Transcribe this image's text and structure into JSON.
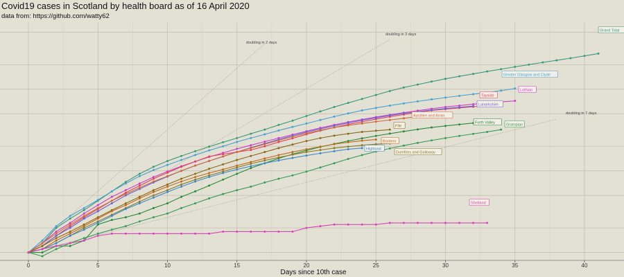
{
  "chart_data": {
    "type": "line",
    "title": "Covid19 cases in Scotland by health board as of 16 April 2020",
    "subtitle": "data from: https://github.com/watty62",
    "xlabel": "Days since 10th case",
    "ylabel": "",
    "xlim": [
      -1,
      43
    ],
    "x_ticks": [
      0,
      5,
      10,
      15,
      20,
      25,
      30,
      35,
      40
    ],
    "y_scale": "log",
    "ylim": [
      8,
      6500
    ],
    "y_tick_labels_visible": false,
    "grid": true,
    "doubling_lines": [
      {
        "label": "doubling in 2 days",
        "days": 2,
        "x_end": 17
      },
      {
        "label": "doubling in 3 days",
        "days": 3,
        "x_end": 26
      },
      {
        "label": "doubling in 7 days",
        "days": 7,
        "x_end": 38
      }
    ],
    "series": [
      {
        "name": "Grand Total",
        "color": "#3a9a78",
        "x_end": 41,
        "values": [
          10,
          13,
          20,
          26,
          33,
          43,
          56,
          73,
          92,
          112,
          132,
          152,
          174,
          198,
          224,
          252,
          285,
          320,
          365,
          412,
          470,
          535,
          605,
          680,
          760,
          850,
          950,
          1050,
          1140,
          1240,
          1340,
          1440,
          1540,
          1650,
          1760,
          1880,
          2000,
          2130,
          2260,
          2400,
          2560,
          2730
        ]
      },
      {
        "name": "Greater Glasgow and Clyde",
        "color": "#4aa0d0",
        "x_end": 35,
        "values": [
          10,
          14,
          21,
          28,
          35,
          44,
          56,
          70,
          86,
          102,
          118,
          136,
          156,
          178,
          200,
          226,
          252,
          280,
          312,
          345,
          380,
          420,
          462,
          505,
          550,
          590,
          630,
          670,
          710,
          750,
          790,
          830,
          870,
          910,
          960,
          1020
        ]
      },
      {
        "name": "Lothian",
        "color": "#cc3fc6",
        "x_end": 35,
        "values": [
          10,
          13,
          18,
          23,
          30,
          38,
          48,
          58,
          70,
          84,
          98,
          114,
          130,
          148,
          166,
          186,
          206,
          228,
          252,
          278,
          306,
          336,
          366,
          396,
          426,
          456,
          486,
          516,
          546,
          576,
          606,
          630,
          655,
          680,
          700,
          720
        ]
      },
      {
        "name": "Tayside",
        "color": "#e0445a",
        "x_end": 33,
        "values": [
          10,
          12,
          16,
          21,
          27,
          34,
          43,
          54,
          66,
          80,
          95,
          112,
          130,
          150,
          160,
          170,
          180,
          200,
          225,
          250,
          280,
          310,
          340,
          370,
          400,
          430,
          460,
          490,
          520,
          550,
          570,
          590,
          610,
          630
        ]
      },
      {
        "name": "Lanarkshire",
        "color": "#6a64d8",
        "x_end": 32,
        "values": [
          10,
          12,
          16,
          20,
          26,
          32,
          40,
          50,
          60,
          72,
          85,
          100,
          116,
          132,
          150,
          170,
          192,
          216,
          242,
          270,
          298,
          326,
          356,
          386,
          416,
          446,
          476,
          506,
          530,
          555,
          580,
          600,
          620
        ]
      },
      {
        "name": "Ayrshire and Arran",
        "color": "#d06a3a",
        "x_end": 28,
        "values": [
          10,
          13,
          17,
          22,
          28,
          35,
          43,
          52,
          62,
          74,
          86,
          100,
          116,
          132,
          150,
          170,
          190,
          212,
          236,
          262,
          288,
          314,
          340,
          360,
          380,
          400,
          420,
          440,
          460
        ]
      },
      {
        "name": "Forth Valley",
        "color": "#2a8a3a",
        "x_end": 32,
        "values": [
          10,
          10,
          12,
          12,
          14,
          22,
          25,
          27,
          30,
          35,
          40,
          48,
          56,
          66,
          78,
          92,
          108,
          124,
          142,
          160,
          178,
          196,
          214,
          232,
          250,
          268,
          286,
          304,
          322,
          340,
          355,
          370,
          385
        ]
      },
      {
        "name": "Grampian",
        "color": "#3a9a58",
        "x_end": 34,
        "values": [
          10,
          9,
          11,
          13,
          15,
          17,
          19,
          21,
          24,
          27,
          30,
          35,
          40,
          46,
          52,
          58,
          64,
          72,
          80,
          88,
          98,
          110,
          124,
          140,
          156,
          172,
          188,
          204,
          220,
          236,
          252,
          268,
          284,
          300,
          320
        ]
      },
      {
        "name": "Fife",
        "color": "#8a6a1a",
        "x_end": 26,
        "values": [
          10,
          12,
          15,
          18,
          22,
          27,
          33,
          40,
          48,
          58,
          68,
          80,
          92,
          106,
          120,
          136,
          152,
          170,
          190,
          210,
          232,
          252,
          270,
          285,
          300,
          310,
          320
        ]
      },
      {
        "name": "Borders",
        "color": "#c06a1a",
        "x_end": 25,
        "values": [
          10,
          11,
          14,
          17,
          21,
          26,
          32,
          38,
          46,
          55,
          64,
          74,
          84,
          94,
          104,
          116,
          128,
          142,
          156,
          170,
          184,
          198,
          212,
          224,
          234,
          242
        ]
      },
      {
        "name": "Dumfries and Galloway",
        "color": "#8a7a2a",
        "x_end": 26,
        "values": [
          10,
          11,
          13,
          16,
          20,
          24,
          29,
          35,
          42,
          50,
          58,
          68,
          78,
          88,
          98,
          110,
          122,
          134,
          146,
          158,
          170,
          180,
          190,
          198,
          206,
          212,
          216
        ]
      },
      {
        "name": "Highland",
        "color": "#3a8aca",
        "x_end": 24,
        "values": [
          10,
          11,
          13,
          16,
          19,
          23,
          28,
          34,
          40,
          47,
          55,
          64,
          74,
          84,
          94,
          104,
          114,
          124,
          134,
          144,
          154,
          164,
          174,
          184,
          190
        ]
      },
      {
        "name": "Shetland",
        "color": "#d844b8",
        "x_end": 33,
        "values": [
          10,
          11,
          12,
          13,
          14,
          16,
          17,
          17,
          17,
          17,
          17,
          17,
          17,
          17,
          18,
          18,
          18,
          18,
          18,
          18,
          20,
          21,
          22,
          22,
          22,
          22,
          23,
          23,
          23,
          23,
          23,
          23,
          23,
          23
        ]
      }
    ]
  }
}
